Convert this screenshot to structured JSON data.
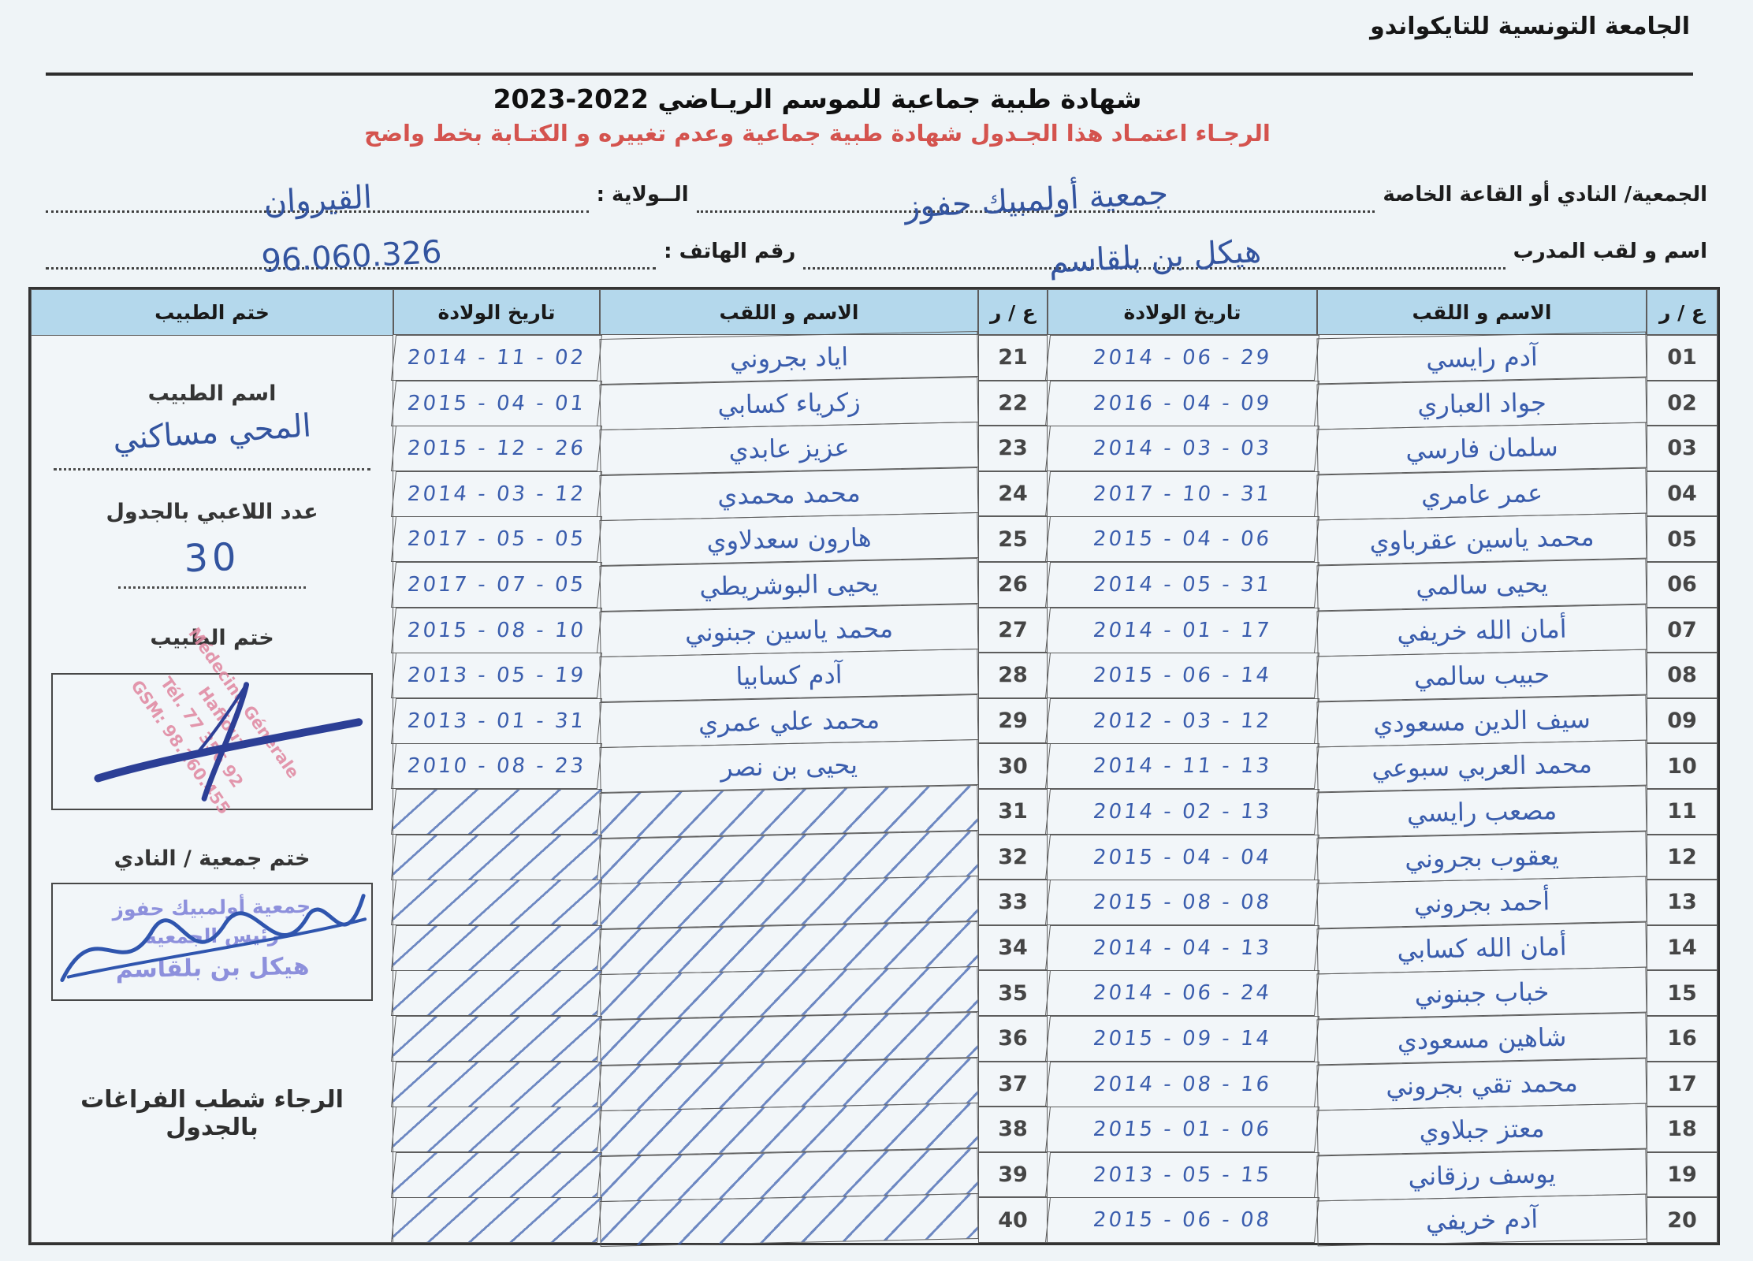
{
  "page": {
    "org_title": "الجامعة التونسية للتايكواندو",
    "doc_title": "شهادة طبية جماعية  للموسم الريـاضي",
    "season_years": "2023-2022",
    "notice": "الرجـاء اعتمـاد هذا الجـدول  شهادة طبية جماعية وعدم تغييره و الكتـابة بخط واضح"
  },
  "form": {
    "club_label": "الجمعية/ النادي أو القاعة الخاصة",
    "club_value": "جمعية أولمبيك حفوز",
    "wilaya_label": "الــولاية :",
    "wilaya_value": "القيروان",
    "coach_label": "اسم و لقب المدرب",
    "coach_value": "هيكل بن بلقاسم",
    "phone_label": "رقم الهاتف :",
    "phone_value": "96.060.326"
  },
  "table": {
    "col_num": "ع / ر",
    "col_name": "الاسم و اللقب",
    "col_dob": "تاريخ الولادة",
    "col_stamp": "ختم الطبيب",
    "right_rows": [
      {
        "num": "01",
        "name": "آدم رايسي",
        "dob": "2014 - 06 - 29",
        "crossed": false
      },
      {
        "num": "02",
        "name": "جواد العباري",
        "dob": "2016 - 04 - 09",
        "crossed": false
      },
      {
        "num": "03",
        "name": "سلمان فارسي",
        "dob": "2014 - 03 - 03",
        "crossed": false
      },
      {
        "num": "04",
        "name": "عمر عامري",
        "dob": "2017 - 10 - 31",
        "crossed": false
      },
      {
        "num": "05",
        "name": "محمد ياسين عقرباوي",
        "dob": "2015 - 04 - 06",
        "crossed": false
      },
      {
        "num": "06",
        "name": "يحيى سالمي",
        "dob": "2014 - 05 - 31",
        "crossed": false
      },
      {
        "num": "07",
        "name": "أمان الله خريفي",
        "dob": "2014 - 01 - 17",
        "crossed": false
      },
      {
        "num": "08",
        "name": "حبيب سالمي",
        "dob": "2015 - 06 - 14",
        "crossed": false
      },
      {
        "num": "09",
        "name": "سيف الدين مسعودي",
        "dob": "2012 - 03 - 12",
        "crossed": false
      },
      {
        "num": "10",
        "name": "محمد العربي سبوعي",
        "dob": "2014 - 11 - 13",
        "crossed": false
      },
      {
        "num": "11",
        "name": "مصعب رايسي",
        "dob": "2014 - 02 - 13",
        "crossed": false
      },
      {
        "num": "12",
        "name": "يعقوب بجروني",
        "dob": "2015 - 04 - 04",
        "crossed": false
      },
      {
        "num": "13",
        "name": "أحمد بجروني",
        "dob": "2015 - 08 - 08",
        "crossed": false
      },
      {
        "num": "14",
        "name": "أمان الله كسابي",
        "dob": "2014 - 04 - 13",
        "crossed": false
      },
      {
        "num": "15",
        "name": "خباب جبنوني",
        "dob": "2014 - 06 - 24",
        "crossed": false
      },
      {
        "num": "16",
        "name": "شاهين مسعودي",
        "dob": "2015 - 09 - 14",
        "crossed": false
      },
      {
        "num": "17",
        "name": "محمد تقي بجروني",
        "dob": "2014 - 08 - 16",
        "crossed": false
      },
      {
        "num": "18",
        "name": "معتز جبلاوي",
        "dob": "2015 - 01 - 06",
        "crossed": false
      },
      {
        "num": "19",
        "name": "يوسف رزقاني",
        "dob": "2013 - 05 - 15",
        "crossed": false
      },
      {
        "num": "20",
        "name": "آدم خريفي",
        "dob": "2015 - 06 - 08",
        "crossed": false
      }
    ],
    "left_rows": [
      {
        "num": "21",
        "name": "اياد بجروني",
        "dob": "2014 - 11 - 02",
        "crossed": false
      },
      {
        "num": "22",
        "name": "زكرياء كسابي",
        "dob": "2015 - 04 - 01",
        "crossed": false
      },
      {
        "num": "23",
        "name": "عزيز عابدي",
        "dob": "2015 - 12 - 26",
        "crossed": false
      },
      {
        "num": "24",
        "name": "محمد محمدي",
        "dob": "2014 - 03 - 12",
        "crossed": false
      },
      {
        "num": "25",
        "name": "هارون سعدلاوي",
        "dob": "2017 - 05 - 05",
        "crossed": false
      },
      {
        "num": "26",
        "name": "يحيى البوشريطي",
        "dob": "2017 - 07 - 05",
        "crossed": false
      },
      {
        "num": "27",
        "name": "محمد ياسين جبنوني",
        "dob": "2015 - 08 - 10",
        "crossed": false
      },
      {
        "num": "28",
        "name": "آدم كسابيا",
        "dob": "2013 - 05 - 19",
        "crossed": false
      },
      {
        "num": "29",
        "name": "محمد علي عمري",
        "dob": "2013 - 01 - 31",
        "crossed": false
      },
      {
        "num": "30",
        "name": "يحيى بن نصر",
        "dob": "2010 - 08 - 23",
        "crossed": false
      },
      {
        "num": "31",
        "name": "",
        "dob": "",
        "crossed": true
      },
      {
        "num": "32",
        "name": "",
        "dob": "",
        "crossed": true
      },
      {
        "num": "33",
        "name": "",
        "dob": "",
        "crossed": true
      },
      {
        "num": "34",
        "name": "",
        "dob": "",
        "crossed": true
      },
      {
        "num": "35",
        "name": "",
        "dob": "",
        "crossed": true
      },
      {
        "num": "36",
        "name": "",
        "dob": "",
        "crossed": true
      },
      {
        "num": "37",
        "name": "",
        "dob": "",
        "crossed": true
      },
      {
        "num": "38",
        "name": "",
        "dob": "",
        "crossed": true
      },
      {
        "num": "39",
        "name": "",
        "dob": "",
        "crossed": true
      },
      {
        "num": "40",
        "name": "",
        "dob": "",
        "crossed": true
      }
    ]
  },
  "doctor_panel": {
    "doctor_name_label": "اسم الطبيب",
    "doctor_name_value": "المحي مساكني",
    "players_count_label": "عدد اللاعبي بالجدول",
    "players_count_value": "30",
    "doctor_stamp_label": "ختم الطبيب",
    "doctor_stamp_lines": [
      "Médecine Générale",
      "Haffouz",
      "Tél. 77 356 92",
      "GSM: 98.260.455"
    ],
    "club_stamp_label": "ختم جمعية / النادي",
    "club_stamp_lines": [
      "جمعية أولمبيك حفوز",
      "رئيس الجمعية",
      "هيكل بن بلقاسم"
    ],
    "note": "الرجاء شطب  الفراغات بالجدول"
  }
}
